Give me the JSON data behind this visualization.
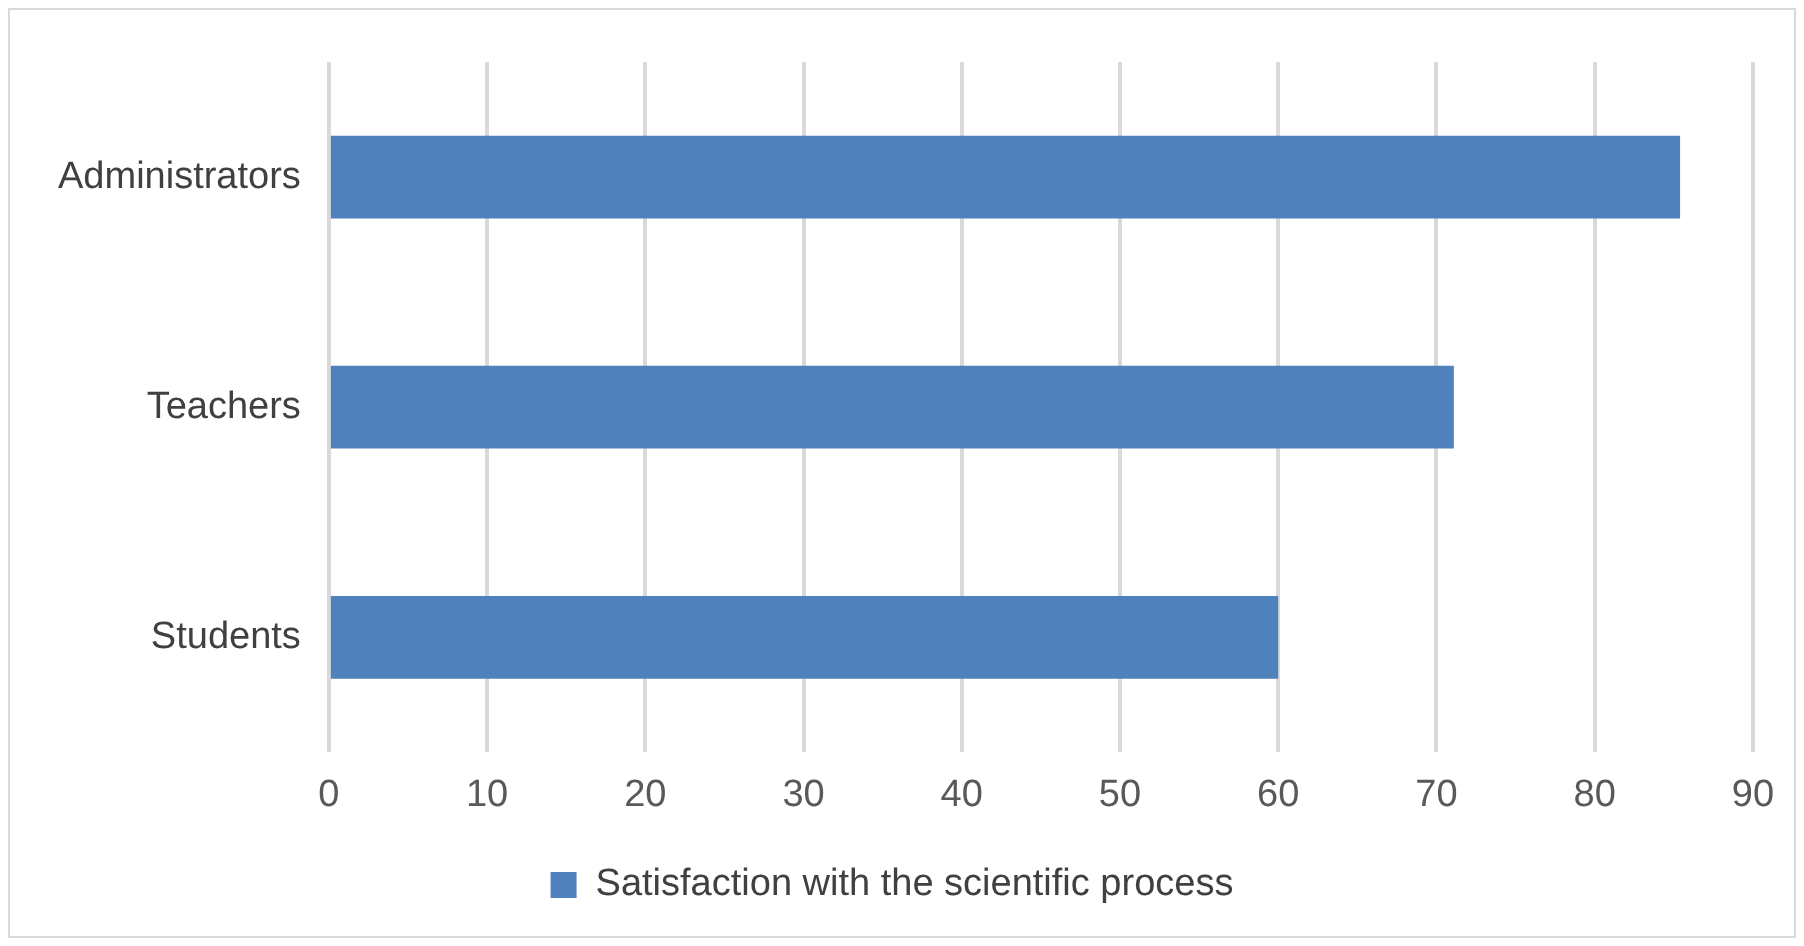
{
  "chart_data": {
    "type": "bar",
    "orientation": "horizontal",
    "categories": [
      "Administrators",
      "Teachers",
      "Students"
    ],
    "series": [
      {
        "name": "Satisfaction with the scientific process",
        "color": "#4f81bd",
        "values": [
          85.4,
          71.1,
          60
        ]
      }
    ],
    "xlim": [
      0,
      90
    ],
    "xticks": [
      0,
      10,
      20,
      30,
      40,
      50,
      60,
      70,
      80,
      90
    ],
    "grid": "x",
    "legend": "bottom"
  }
}
